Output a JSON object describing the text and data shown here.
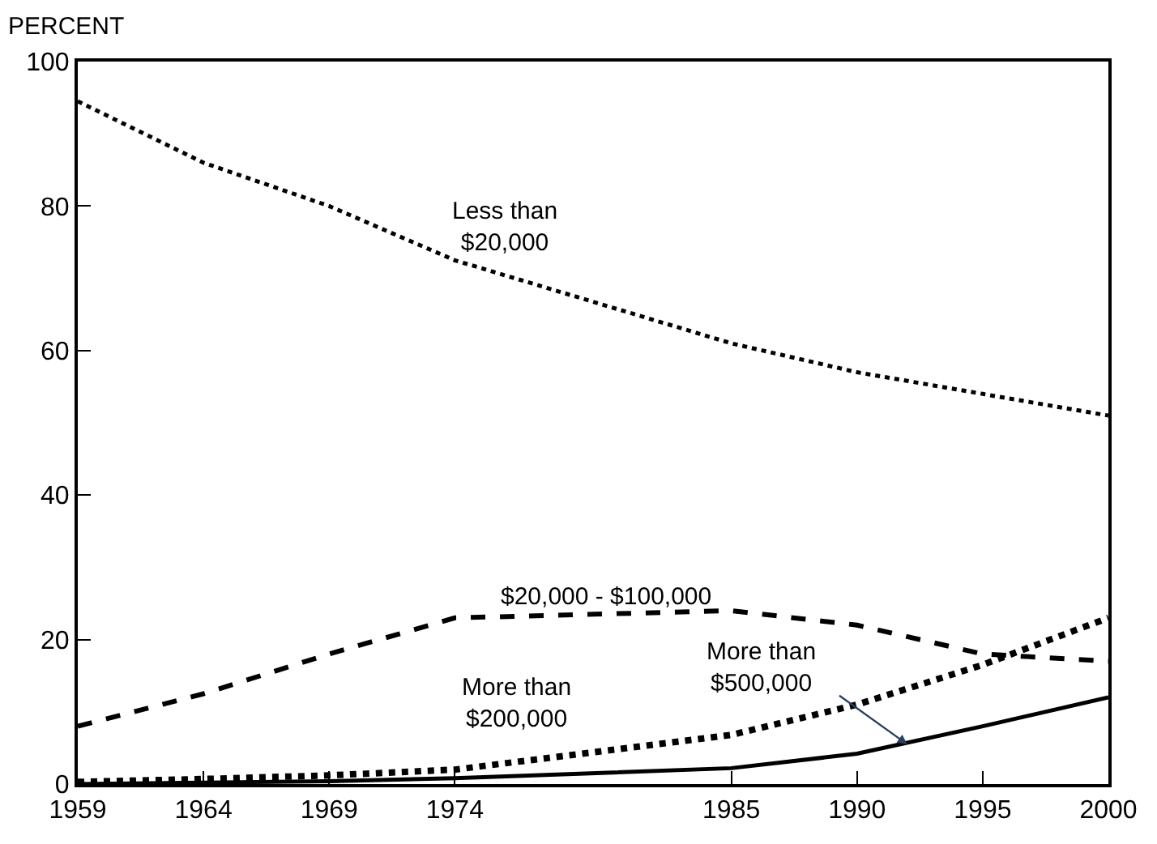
{
  "chart_data": {
    "type": "line",
    "ylabel": "PERCENT",
    "x": [
      1959,
      1964,
      1969,
      1974,
      1985,
      1990,
      1995,
      2000
    ],
    "xlim": [
      1959,
      2000
    ],
    "xticks": [
      1959,
      1964,
      1969,
      1974,
      1985,
      1990,
      1995,
      2000
    ],
    "ylim": [
      0,
      100
    ],
    "yticks": [
      0,
      20,
      40,
      60,
      80,
      100
    ],
    "series": [
      {
        "name": "Less than\n$20,000",
        "color": "#000000",
        "line_style": "dotted",
        "values": [
          94.5,
          86,
          80,
          72.5,
          61,
          57,
          54,
          51
        ]
      },
      {
        "name": "$20,000 - $100,000",
        "color": "#000000",
        "line_style": "dashed",
        "values": [
          8,
          12.5,
          18,
          23,
          24,
          22,
          18,
          17
        ]
      },
      {
        "name": "More than\n$200,000",
        "color": "#000000",
        "line_style": "dotted",
        "values": [
          0.3,
          0.7,
          1.2,
          2,
          6.8,
          11,
          16.5,
          23
        ]
      },
      {
        "name": "More than\n$500,000",
        "color": "#000000",
        "line_style": "solid",
        "values": [
          0,
          0.2,
          0.4,
          0.8,
          2.2,
          4.2,
          8,
          12
        ]
      }
    ]
  }
}
